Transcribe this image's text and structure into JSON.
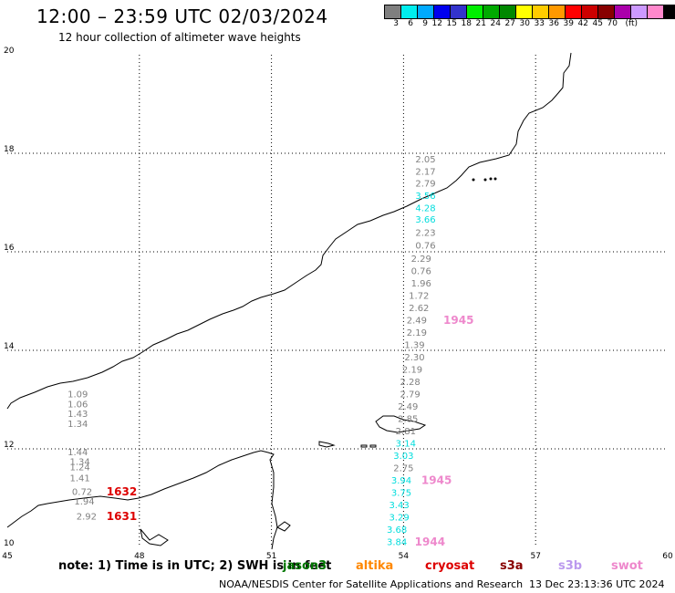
{
  "header": {
    "title": "12:00 – 23:59 UTC 02/03/2024",
    "subtitle": "12 hour collection of altimeter wave heights"
  },
  "legend": {
    "swatches": [
      {
        "color": "#7f7f7f"
      },
      {
        "color": "#00eeee"
      },
      {
        "color": "#00aaff"
      },
      {
        "color": "#0000ee"
      },
      {
        "color": "#3333cc"
      },
      {
        "color": "#00ee00"
      },
      {
        "color": "#00aa00"
      },
      {
        "color": "#008800"
      },
      {
        "color": "#ffff00"
      },
      {
        "color": "#ffcc00"
      },
      {
        "color": "#ff9900"
      },
      {
        "color": "#ff0000"
      },
      {
        "color": "#cc0000"
      },
      {
        "color": "#880000"
      },
      {
        "color": "#aa00aa"
      },
      {
        "color": "#cc99ff"
      },
      {
        "color": "#ff88cc"
      },
      {
        "color": "#000000"
      }
    ],
    "labels": [
      "3",
      "6",
      "9",
      "12",
      "15",
      "18",
      "21",
      "24",
      "27",
      "30",
      "33",
      "36",
      "39",
      "42",
      "45",
      "70",
      "(ft)"
    ]
  },
  "axes": {
    "lon_ticks": [
      "45",
      "48",
      "51",
      "54",
      "57",
      "60"
    ],
    "lat_ticks": [
      "20",
      "18",
      "16",
      "14",
      "12",
      "10"
    ]
  },
  "map_extent": {
    "lon": [
      45,
      60
    ],
    "lat": [
      10,
      20
    ]
  },
  "observations": [
    {
      "text": "2.05",
      "color": "#808080",
      "lon": 54.5,
      "lat": 17.87
    },
    {
      "text": "2.17",
      "color": "#808080",
      "lon": 54.5,
      "lat": 17.62
    },
    {
      "text": "2.79",
      "color": "#808080",
      "lon": 54.5,
      "lat": 17.38
    },
    {
      "text": "3.56",
      "color": "#00dddd",
      "lon": 54.5,
      "lat": 17.13
    },
    {
      "text": "4.28",
      "color": "#00dddd",
      "lon": 54.5,
      "lat": 16.88
    },
    {
      "text": "3.66",
      "color": "#00dddd",
      "lon": 54.5,
      "lat": 16.65
    },
    {
      "text": "2.23",
      "color": "#808080",
      "lon": 54.5,
      "lat": 16.38
    },
    {
      "text": "0.76",
      "color": "#808080",
      "lon": 54.5,
      "lat": 16.12
    },
    {
      "text": "2.29",
      "color": "#808080",
      "lon": 54.4,
      "lat": 15.85
    },
    {
      "text": "0.76",
      "color": "#808080",
      "lon": 54.4,
      "lat": 15.6
    },
    {
      "text": "1.96",
      "color": "#808080",
      "lon": 54.4,
      "lat": 15.35
    },
    {
      "text": "1.72",
      "color": "#808080",
      "lon": 54.35,
      "lat": 15.1
    },
    {
      "text": "2.62",
      "color": "#808080",
      "lon": 54.35,
      "lat": 14.85
    },
    {
      "text": "2.49",
      "color": "#808080",
      "lon": 54.3,
      "lat": 14.6
    },
    {
      "text": "2.19",
      "color": "#808080",
      "lon": 54.3,
      "lat": 14.35
    },
    {
      "text": "1.39",
      "color": "#808080",
      "lon": 54.25,
      "lat": 14.1
    },
    {
      "text": "2.30",
      "color": "#808080",
      "lon": 54.25,
      "lat": 13.85
    },
    {
      "text": "2.19",
      "color": "#808080",
      "lon": 54.2,
      "lat": 13.6
    },
    {
      "text": "2.28",
      "color": "#808080",
      "lon": 54.15,
      "lat": 13.35
    },
    {
      "text": "2.79",
      "color": "#808080",
      "lon": 54.15,
      "lat": 13.1
    },
    {
      "text": "2.49",
      "color": "#808080",
      "lon": 54.1,
      "lat": 12.85
    },
    {
      "text": "2.85",
      "color": "#808080",
      "lon": 54.1,
      "lat": 12.6
    },
    {
      "text": "2.81",
      "color": "#808080",
      "lon": 54.05,
      "lat": 12.35
    },
    {
      "text": "3.14",
      "color": "#00dddd",
      "lon": 54.05,
      "lat": 12.1
    },
    {
      "text": "3.03",
      "color": "#00dddd",
      "lon": 54.0,
      "lat": 11.85
    },
    {
      "text": "2.75",
      "color": "#808080",
      "lon": 54.0,
      "lat": 11.6
    },
    {
      "text": "3.94",
      "color": "#00dddd",
      "lon": 53.95,
      "lat": 11.35
    },
    {
      "text": "3.75",
      "color": "#00dddd",
      "lon": 53.95,
      "lat": 11.1
    },
    {
      "text": "3.43",
      "color": "#00dddd",
      "lon": 53.9,
      "lat": 10.85
    },
    {
      "text": "3.29",
      "color": "#00dddd",
      "lon": 53.9,
      "lat": 10.6
    },
    {
      "text": "3.68",
      "color": "#00dddd",
      "lon": 53.85,
      "lat": 10.35
    },
    {
      "text": "3.84",
      "color": "#00dddd",
      "lon": 53.85,
      "lat": 10.1
    },
    {
      "text": "1.09",
      "color": "#808080",
      "lon": 46.6,
      "lat": 13.1
    },
    {
      "text": "1.06",
      "color": "#808080",
      "lon": 46.6,
      "lat": 12.9
    },
    {
      "text": "1.43",
      "color": "#808080",
      "lon": 46.6,
      "lat": 12.7
    },
    {
      "text": "1.34",
      "color": "#808080",
      "lon": 46.6,
      "lat": 12.5
    },
    {
      "text": "1.44",
      "color": "#808080",
      "lon": 46.6,
      "lat": 11.93
    },
    {
      "text": "1.34",
      "color": "#808080",
      "lon": 46.65,
      "lat": 11.73
    },
    {
      "text": "1.24",
      "color": "#808080",
      "lon": 46.65,
      "lat": 11.62
    },
    {
      "text": "1.41",
      "color": "#808080",
      "lon": 46.65,
      "lat": 11.4
    },
    {
      "text": "0.72",
      "color": "#808080",
      "lon": 46.7,
      "lat": 11.12
    },
    {
      "text": "1.94",
      "color": "#808080",
      "lon": 46.75,
      "lat": 10.93
    },
    {
      "text": "2.92",
      "color": "#808080",
      "lon": 46.8,
      "lat": 10.62
    }
  ],
  "time_labels": [
    {
      "text": "1945",
      "color": "#ee88cc",
      "lon": 55.25,
      "lat": 14.6
    },
    {
      "text": "1945",
      "color": "#ee88cc",
      "lon": 54.75,
      "lat": 11.35
    },
    {
      "text": "1944",
      "color": "#ee88cc",
      "lon": 54.6,
      "lat": 10.1
    },
    {
      "text": "1632",
      "color": "#dd0000",
      "lon": 47.6,
      "lat": 11.12
    },
    {
      "text": "1631",
      "color": "#dd0000",
      "lon": 47.6,
      "lat": 10.62
    }
  ],
  "note": {
    "prefix": "note:  1) Time is in UTC; 2) SWH is in feet",
    "satellites": [
      {
        "name": "jason3",
        "color": "#007700"
      },
      {
        "name": "altika",
        "color": "#ff8800"
      },
      {
        "name": "cryosat",
        "color": "#dd0000"
      },
      {
        "name": "s3a",
        "color": "#880000"
      },
      {
        "name": "s3b",
        "color": "#bb99ee"
      },
      {
        "name": "swot",
        "color": "#ee88cc"
      }
    ]
  },
  "footer": {
    "agency": "NOAA/NESDIS Center for Satellite Applications and Research",
    "timestamp": "13 Dec 23:13:36 UTC 2024"
  }
}
